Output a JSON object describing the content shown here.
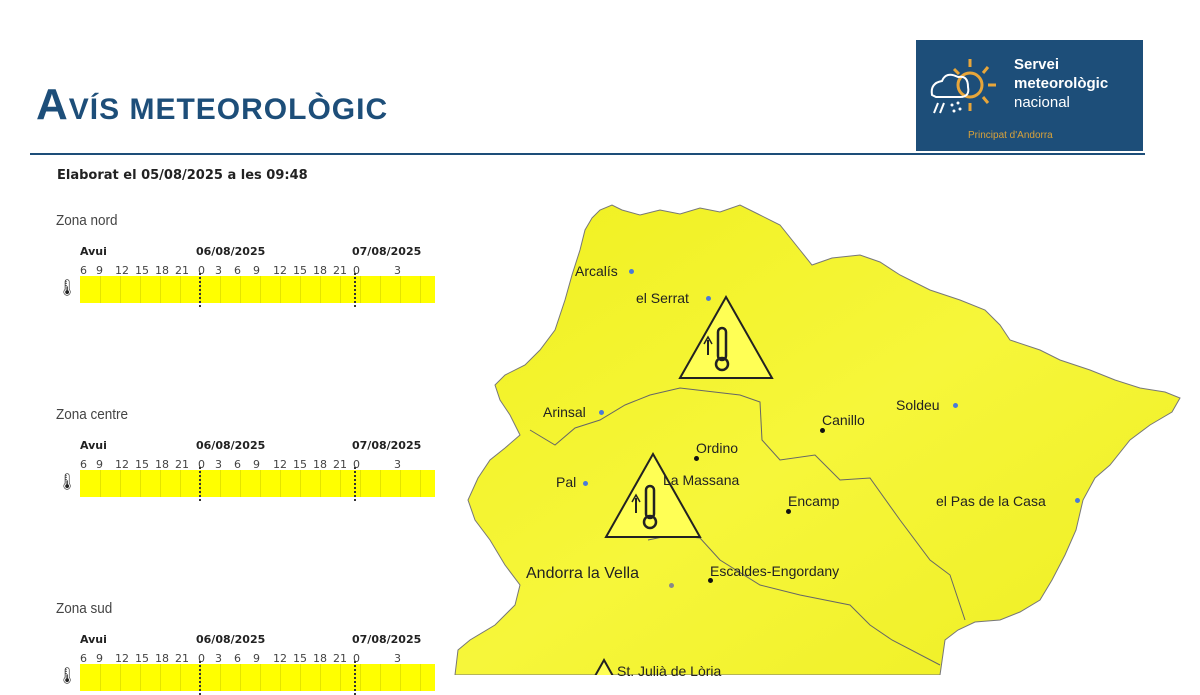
{
  "header": {
    "title_cap": "A",
    "title_rest": "VÍS METEOROLÒGIC"
  },
  "logo": {
    "line1": "Servei",
    "line2": "meteorològic",
    "line3": "nacional",
    "sub": "Principat d'Andorra"
  },
  "elaborat": "Elaborat el 05/08/2025 a les 09:48",
  "timeline": {
    "today": "Avui",
    "day2": "06/08/2025",
    "day3": "07/08/2025",
    "hours": [
      "6",
      "9",
      "12",
      "15",
      "18",
      "21",
      "0",
      "3",
      "6",
      "9",
      "12",
      "15",
      "18",
      "21",
      "0",
      "3"
    ]
  },
  "zones": [
    {
      "name": "Zona nord",
      "warning": "high-temperature",
      "level_color": "#ffff00"
    },
    {
      "name": "Zona centre",
      "warning": "high-temperature",
      "level_color": "#ffff00"
    },
    {
      "name": "Zona sud",
      "warning": "high-temperature",
      "level_color": "#ffff00"
    }
  ],
  "map": {
    "places": [
      "Arcalís",
      "el Serrat",
      "Arinsal",
      "Canillo",
      "Soldeu",
      "Ordino",
      "La Massana",
      "Pal",
      "Encamp",
      "el Pas de la Casa",
      "Andorra la Vella",
      "Escaldes-Engordany",
      "St. Julià de Lòria"
    ],
    "warning_icon": "thermometer-warning-icon",
    "fill": "#f4f42a"
  }
}
